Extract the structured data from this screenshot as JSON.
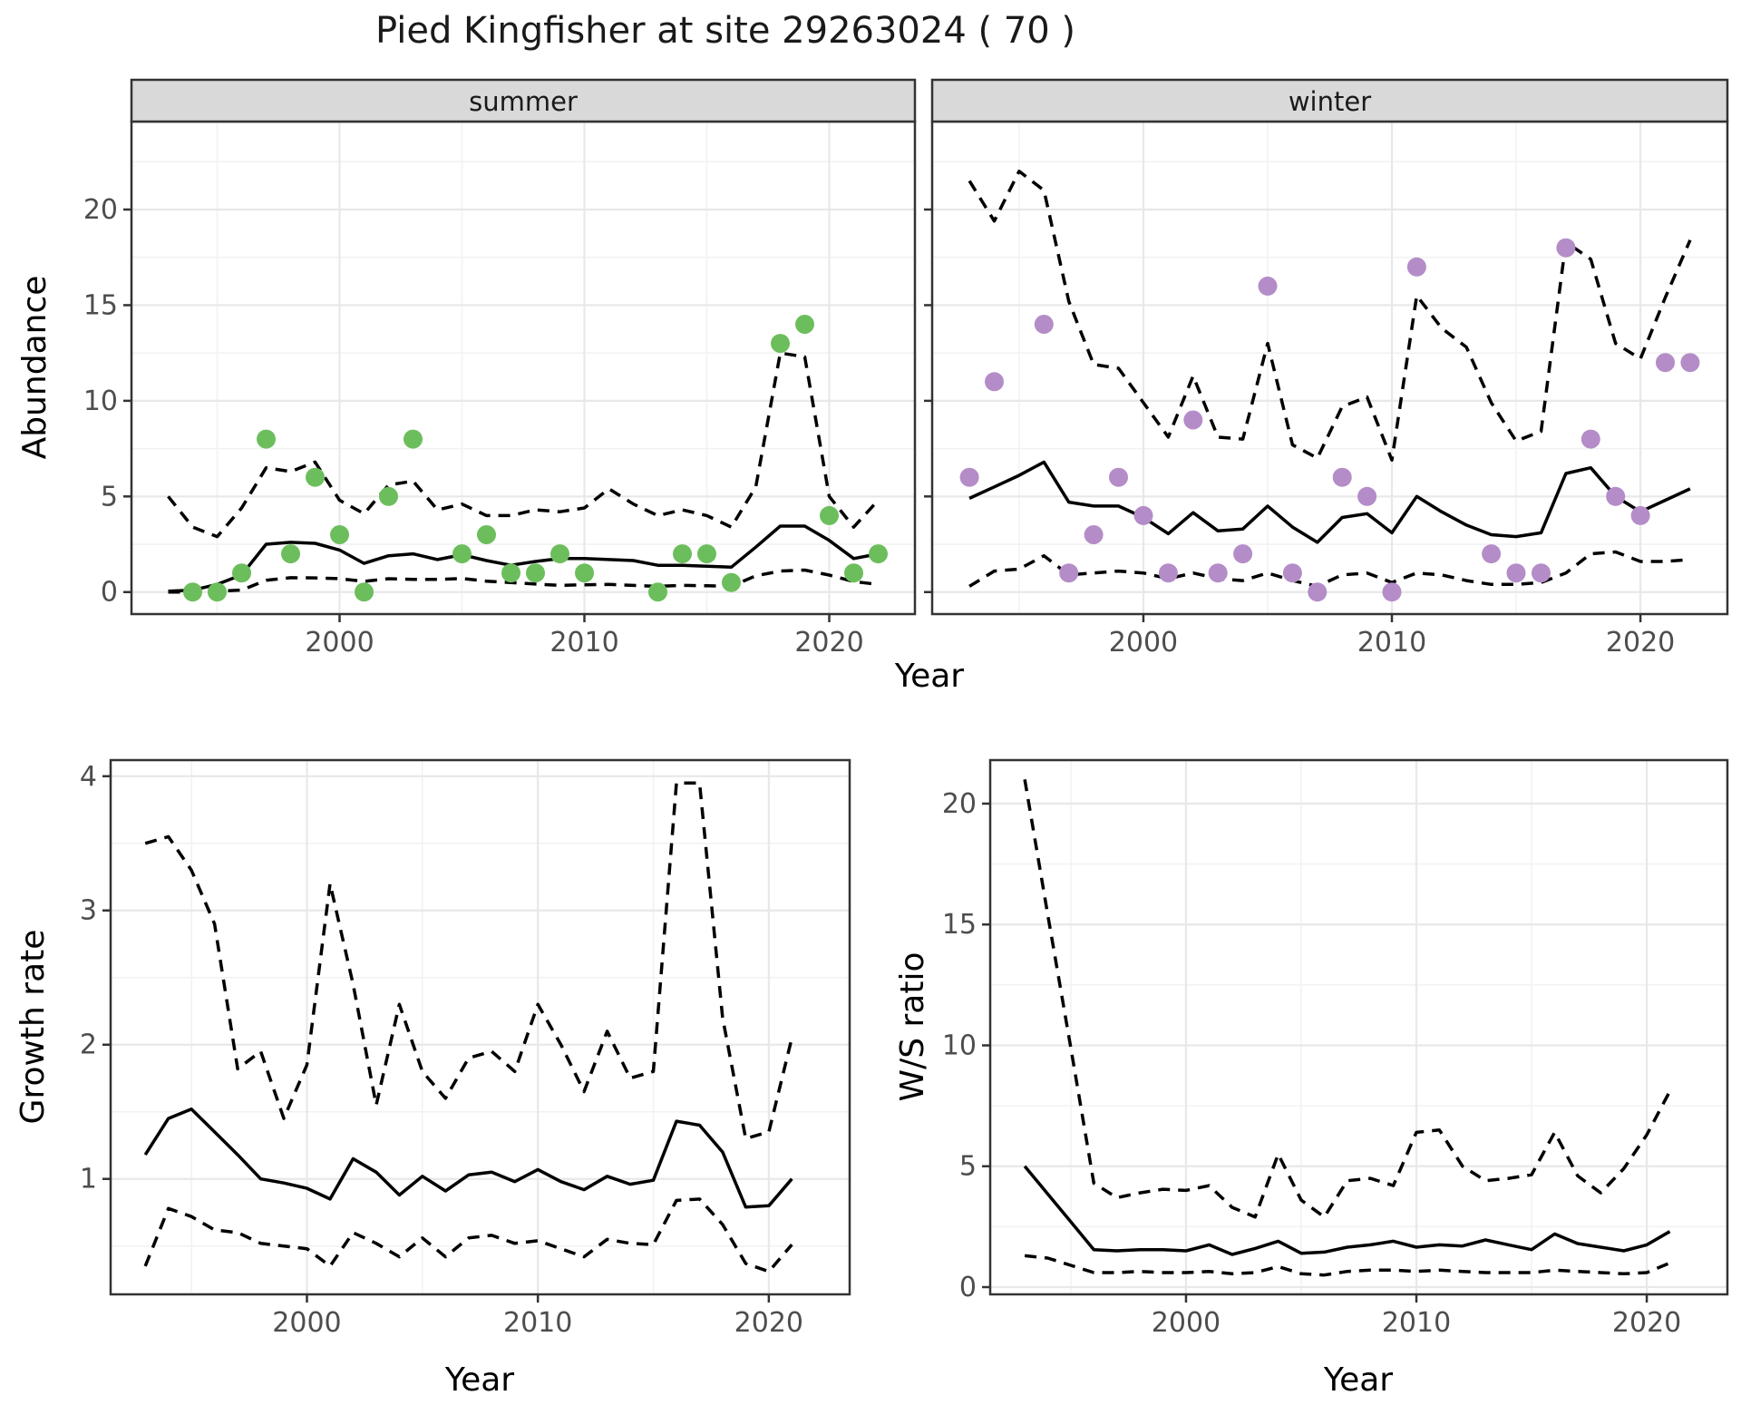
{
  "title": "Pied Kingfisher at site 29263024 ( 70 )",
  "axis_labels": {
    "x": "Year",
    "abundance": "Abundance",
    "growth": "Growth rate",
    "ws_ratio": "W/S ratio"
  },
  "facet_labels": {
    "summer": "summer",
    "winter": "winter"
  },
  "colors": {
    "summer_point": "#6cbe5c",
    "winter_point": "#b48cc8",
    "line": "#000000",
    "strip_bg": "#d9d9d9",
    "strip_text": "#1a1a1a",
    "grid_major": "#e8e8e8",
    "grid_minor": "#f2f2f2",
    "tick_text": "#4d4d4d",
    "panel_border": "#333333",
    "background": "#ffffff"
  },
  "chart_data": [
    {
      "id": "abundance_summer",
      "type": "line",
      "facet": "summer",
      "xlabel": "Year",
      "ylabel": "Abundance",
      "xlim": [
        1991.5,
        2023.5
      ],
      "ylim": [
        -1.15,
        24.6
      ],
      "x_ticks": [
        2000,
        2010,
        2020
      ],
      "x_minor_ticks": [
        1995,
        2005,
        2015
      ],
      "y_ticks": [
        0,
        5,
        10,
        15,
        20
      ],
      "y_minor_ticks": [
        2.5,
        7.5,
        12.5,
        17.5,
        22.5
      ],
      "show_y_tick_labels": true,
      "years": [
        1993,
        1994,
        1995,
        1996,
        1997,
        1998,
        1999,
        2000,
        2001,
        2002,
        2003,
        2004,
        2005,
        2006,
        2007,
        2008,
        2009,
        2010,
        2011,
        2012,
        2013,
        2014,
        2015,
        2016,
        2017,
        2018,
        2019,
        2020,
        2021,
        2022
      ],
      "series": [
        {
          "name": "median_fit",
          "style": "solid",
          "values": [
            0.05,
            0.1,
            0.4,
            0.9,
            2.5,
            2.6,
            2.55,
            2.2,
            1.5,
            1.9,
            2.0,
            1.7,
            1.95,
            1.65,
            1.4,
            1.6,
            1.75,
            1.75,
            1.7,
            1.65,
            1.4,
            1.4,
            1.35,
            1.3,
            2.35,
            3.45,
            3.45,
            2.7,
            1.75,
            2.0
          ]
        },
        {
          "name": "upper_ci",
          "style": "dashed",
          "values": [
            5.0,
            3.4,
            2.9,
            4.4,
            6.5,
            6.3,
            6.8,
            4.8,
            4.1,
            5.6,
            5.8,
            4.3,
            4.6,
            4.0,
            4.0,
            4.3,
            4.2,
            4.4,
            5.4,
            4.6,
            4.0,
            4.3,
            4.0,
            3.4,
            5.5,
            12.5,
            12.3,
            5.0,
            3.4,
            4.8
          ]
        },
        {
          "name": "lower_ci",
          "style": "dashed",
          "values": [
            0.0,
            0.0,
            0.05,
            0.1,
            0.62,
            0.75,
            0.74,
            0.7,
            0.56,
            0.7,
            0.66,
            0.66,
            0.71,
            0.57,
            0.5,
            0.42,
            0.35,
            0.38,
            0.4,
            0.35,
            0.3,
            0.35,
            0.33,
            0.3,
            0.85,
            1.1,
            1.15,
            0.89,
            0.55,
            0.4
          ]
        }
      ],
      "points": {
        "name": "observed_abundance_summer",
        "color_key": "summer_point",
        "x": [
          1994,
          1995,
          1996,
          1997,
          1998,
          1999,
          2000,
          2001,
          2002,
          2003,
          2005,
          2006,
          2007,
          2008,
          2009,
          2010,
          2013,
          2014,
          2015,
          2016,
          2018,
          2019,
          2020,
          2021,
          2022
        ],
        "y": [
          0,
          0,
          1,
          8,
          2,
          6,
          3,
          0,
          5,
          8,
          2,
          3,
          1,
          1,
          2,
          1,
          0,
          2,
          2,
          0.5,
          13,
          14,
          4,
          1,
          2
        ]
      }
    },
    {
      "id": "abundance_winter",
      "type": "line",
      "facet": "winter",
      "xlabel": "Year",
      "ylabel": "Abundance",
      "xlim": [
        1991.5,
        2023.5
      ],
      "ylim": [
        -1.15,
        24.6
      ],
      "x_ticks": [
        2000,
        2010,
        2020
      ],
      "x_minor_ticks": [
        1995,
        2005,
        2015
      ],
      "y_ticks": [
        0,
        5,
        10,
        15,
        20
      ],
      "y_minor_ticks": [
        2.5,
        7.5,
        12.5,
        17.5,
        22.5
      ],
      "show_y_tick_labels": false,
      "years": [
        1993,
        1994,
        1995,
        1996,
        1997,
        1998,
        1999,
        2000,
        2001,
        2002,
        2003,
        2004,
        2005,
        2006,
        2007,
        2008,
        2009,
        2010,
        2011,
        2012,
        2013,
        2014,
        2015,
        2016,
        2017,
        2018,
        2019,
        2020,
        2021,
        2022
      ],
      "series": [
        {
          "name": "median_fit",
          "style": "solid",
          "values": [
            4.9,
            5.5,
            6.1,
            6.8,
            4.7,
            4.5,
            4.5,
            3.9,
            3.05,
            4.15,
            3.2,
            3.3,
            4.5,
            3.4,
            2.6,
            3.9,
            4.1,
            3.1,
            5.0,
            4.2,
            3.5,
            3.0,
            2.9,
            3.1,
            6.2,
            6.5,
            5.0,
            4.2,
            4.8,
            5.4
          ]
        },
        {
          "name": "upper_ci",
          "style": "dashed",
          "values": [
            21.5,
            19.4,
            22.0,
            21.0,
            15.2,
            11.9,
            11.7,
            9.9,
            8.1,
            11.3,
            8.1,
            8.0,
            13.0,
            7.7,
            7.0,
            9.7,
            10.2,
            6.9,
            15.5,
            13.8,
            12.8,
            9.9,
            7.9,
            8.4,
            18.3,
            17.4,
            13.0,
            12.2,
            15.4,
            18.4
          ]
        },
        {
          "name": "lower_ci",
          "style": "dashed",
          "values": [
            0.3,
            1.1,
            1.2,
            1.9,
            0.9,
            1.0,
            1.1,
            1.0,
            0.7,
            1.0,
            0.7,
            0.6,
            1.0,
            0.6,
            0.3,
            0.9,
            1.0,
            0.5,
            1.0,
            0.9,
            0.6,
            0.4,
            0.4,
            0.5,
            1.0,
            2.0,
            2.1,
            1.6,
            1.6,
            1.7
          ]
        }
      ],
      "points": {
        "name": "observed_abundance_winter",
        "color_key": "winter_point",
        "x": [
          1993,
          1994,
          1996,
          1997,
          1998,
          1999,
          2000,
          2001,
          2002,
          2003,
          2004,
          2005,
          2006,
          2007,
          2008,
          2009,
          2010,
          2011,
          2014,
          2015,
          2016,
          2017,
          2018,
          2019,
          2020,
          2021,
          2022
        ],
        "y": [
          6,
          11,
          14,
          1,
          3,
          6,
          4,
          1,
          9,
          1,
          2,
          16,
          1,
          0,
          6,
          5,
          0,
          17,
          2,
          1,
          1,
          18,
          8,
          5,
          4,
          12,
          12
        ]
      }
    },
    {
      "id": "growth_rate",
      "type": "line",
      "facet": null,
      "xlabel": "Year",
      "ylabel": "Growth rate",
      "xlim": [
        1991.5,
        2023.5
      ],
      "ylim": [
        0.14,
        4.12
      ],
      "x_ticks": [
        2000,
        2010,
        2020
      ],
      "x_minor_ticks": [
        1995,
        2005,
        2015
      ],
      "y_ticks": [
        1,
        2,
        3,
        4
      ],
      "y_minor_ticks": [
        0.5,
        1.5,
        2.5,
        3.5
      ],
      "show_y_tick_labels": true,
      "years": [
        1993,
        1994,
        1995,
        1996,
        1997,
        1998,
        1999,
        2000,
        2001,
        2002,
        2003,
        2004,
        2005,
        2006,
        2007,
        2008,
        2009,
        2010,
        2011,
        2012,
        2013,
        2014,
        2015,
        2016,
        2017,
        2018,
        2019,
        2020,
        2021
      ],
      "series": [
        {
          "name": "median_growth",
          "style": "solid",
          "values": [
            1.18,
            1.45,
            1.52,
            1.35,
            1.18,
            1.0,
            0.97,
            0.93,
            0.85,
            1.15,
            1.05,
            0.88,
            1.02,
            0.91,
            1.03,
            1.05,
            0.98,
            1.07,
            0.98,
            0.92,
            1.02,
            0.96,
            0.99,
            1.43,
            1.4,
            1.2,
            0.79,
            0.8,
            1.0
          ]
        },
        {
          "name": "upper_ci",
          "style": "dashed",
          "values": [
            3.5,
            3.55,
            3.3,
            2.9,
            1.82,
            1.95,
            1.45,
            1.85,
            3.2,
            2.45,
            1.55,
            2.3,
            1.8,
            1.6,
            1.9,
            1.95,
            1.8,
            2.3,
            2.0,
            1.65,
            2.1,
            1.75,
            1.8,
            3.95,
            3.95,
            2.2,
            1.3,
            1.35,
            2.05
          ]
        },
        {
          "name": "lower_ci",
          "style": "dashed",
          "values": [
            0.35,
            0.78,
            0.72,
            0.62,
            0.6,
            0.52,
            0.5,
            0.48,
            0.35,
            0.6,
            0.52,
            0.42,
            0.56,
            0.42,
            0.56,
            0.58,
            0.52,
            0.54,
            0.48,
            0.42,
            0.55,
            0.52,
            0.51,
            0.84,
            0.85,
            0.66,
            0.37,
            0.31,
            0.51
          ]
        }
      ],
      "points": null
    },
    {
      "id": "winter_summer_ratio",
      "type": "line",
      "facet": null,
      "xlabel": "Year",
      "ylabel": "W/S ratio",
      "xlim": [
        1991.5,
        2023.5
      ],
      "ylim": [
        -0.3,
        21.8
      ],
      "x_ticks": [
        2000,
        2010,
        2020
      ],
      "x_minor_ticks": [
        1995,
        2005,
        2015
      ],
      "y_ticks": [
        0,
        5,
        10,
        15,
        20
      ],
      "y_minor_ticks": [
        2.5,
        7.5,
        12.5,
        17.5
      ],
      "show_y_tick_labels": true,
      "years": [
        1993,
        1994,
        1995,
        1996,
        1997,
        1998,
        1999,
        2000,
        2001,
        2002,
        2003,
        2004,
        2005,
        2006,
        2007,
        2008,
        2009,
        2010,
        2011,
        2012,
        2013,
        2014,
        2015,
        2016,
        2017,
        2018,
        2019,
        2020,
        2021
      ],
      "series": [
        {
          "name": "median_ratio",
          "style": "solid",
          "values": [
            5.0,
            3.85,
            2.7,
            1.55,
            1.5,
            1.55,
            1.55,
            1.5,
            1.75,
            1.35,
            1.6,
            1.9,
            1.4,
            1.45,
            1.65,
            1.75,
            1.9,
            1.65,
            1.75,
            1.7,
            1.95,
            1.75,
            1.55,
            2.2,
            1.8,
            1.65,
            1.5,
            1.75,
            2.3
          ]
        },
        {
          "name": "upper_ci",
          "style": "dashed",
          "values": [
            21.0,
            15.4,
            9.9,
            4.3,
            3.7,
            3.9,
            4.05,
            4.0,
            4.2,
            3.3,
            2.9,
            5.5,
            3.6,
            2.9,
            4.4,
            4.5,
            4.2,
            6.4,
            6.5,
            5.0,
            4.4,
            4.5,
            4.65,
            6.4,
            4.6,
            3.9,
            4.9,
            6.3,
            8.1
          ]
        },
        {
          "name": "lower_ci",
          "style": "dashed",
          "values": [
            1.3,
            1.2,
            0.9,
            0.6,
            0.6,
            0.65,
            0.6,
            0.6,
            0.65,
            0.55,
            0.6,
            0.85,
            0.55,
            0.5,
            0.65,
            0.7,
            0.7,
            0.65,
            0.7,
            0.65,
            0.6,
            0.6,
            0.6,
            0.7,
            0.65,
            0.6,
            0.55,
            0.6,
            1.0
          ]
        }
      ],
      "points": null
    }
  ]
}
